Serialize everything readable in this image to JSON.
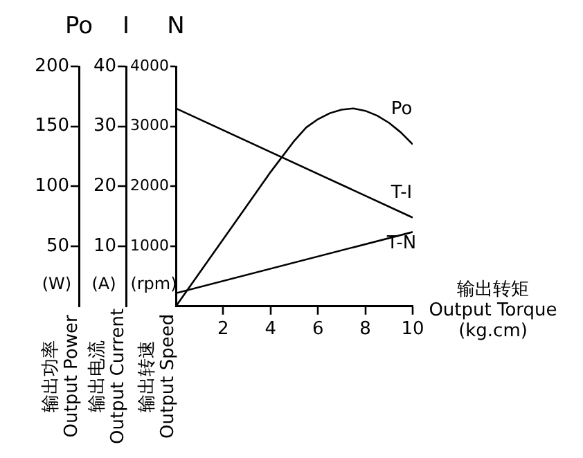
{
  "chart_data": {
    "type": "line",
    "ylabel": "N",
    "y2label": "I",
    "y3label": "Po",
    "xlabel": "输出转矩\nOutput Torque\n(kg.cm)",
    "annotations": [
      "(rpm)",
      "(A)",
      "(W)",
      "输出转速\nOutput Speed",
      "输出电流\nOutput Current",
      "输出功率\nOutput Power"
    ],
    "xlim": [
      0,
      10
    ],
    "xticks": [
      2,
      4,
      6,
      8,
      10
    ],
    "ylim": [
      0,
      4000
    ],
    "yticks": [
      1000,
      2000,
      3000,
      4000
    ],
    "y2lim": [
      0,
      40
    ],
    "y2ticks": [
      10,
      20,
      30,
      40
    ],
    "y3lim": [
      0,
      200
    ],
    "y3ticks": [
      50,
      100,
      150,
      200
    ],
    "grid": false,
    "legend": false,
    "marker": "none",
    "line_style": "solid",
    "series": [
      {
        "name": "Po",
        "color": "#000000",
        "axis": "y3",
        "x": [
          0,
          1,
          2,
          3,
          4,
          5,
          5.5,
          6,
          6.5,
          7,
          7.5,
          8,
          8.5,
          9,
          9.5,
          10
        ],
        "values": [
          0,
          28,
          56,
          84,
          112,
          138,
          149,
          156,
          161,
          164,
          165,
          163,
          159,
          153,
          145,
          135
        ]
      },
      {
        "name": "T-I",
        "color": "#000000",
        "axis": "y2",
        "x": [
          0,
          10
        ],
        "values": [
          33,
          14.8
        ]
      },
      {
        "name": "T-N",
        "color": "#000000",
        "axis": "y",
        "x": [
          0,
          10
        ],
        "values": [
          220,
          1240
        ]
      }
    ]
  }
}
